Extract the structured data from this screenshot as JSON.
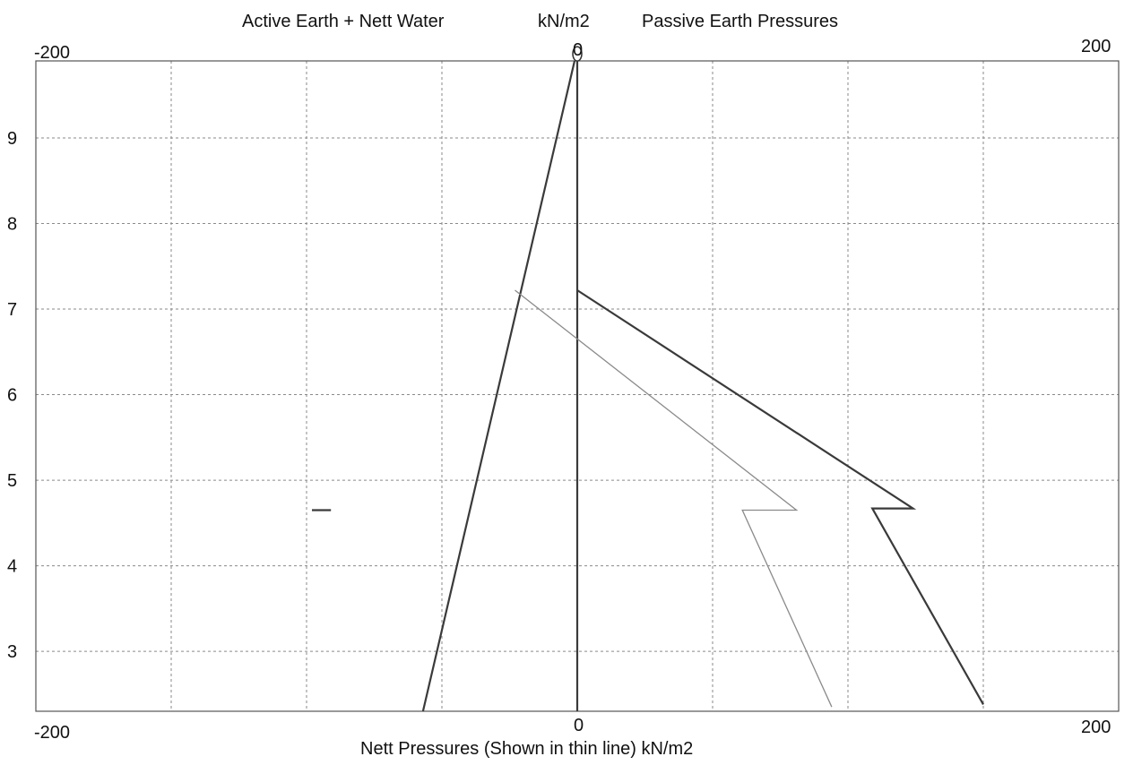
{
  "chart_data": {
    "type": "line",
    "title_left": "Active Earth + Nett Water",
    "title_center": "kN/m2",
    "title_right": "Passive Earth Pressures",
    "xlabel": "Nett Pressures (Shown in thin line) kN/m2",
    "top_x_labels": {
      "left": "-200",
      "right": "200"
    },
    "bottom_x_labels": {
      "left": "-200",
      "center": "0",
      "right": "200"
    },
    "xlim": [
      -200,
      200
    ],
    "ylim": [
      2.3,
      9.9
    ],
    "y_ticks": [
      3,
      4,
      5,
      6,
      7,
      8,
      9
    ],
    "x_grid": [
      -150,
      -100,
      -50,
      0,
      50,
      100,
      150
    ],
    "grid": true,
    "series": [
      {
        "style": "thick",
        "points": [
          [
            -1,
            9.9
          ],
          [
            -57,
            2.3
          ]
        ]
      },
      {
        "style": "thick",
        "points": [
          [
            -98,
            4.65
          ],
          [
            -91,
            4.65
          ]
        ]
      },
      {
        "style": "thick",
        "points": [
          [
            0,
            9.9
          ],
          [
            0,
            2.3
          ]
        ]
      },
      {
        "style": "thick",
        "points": [
          [
            0,
            7.22
          ],
          [
            124,
            4.67
          ],
          [
            109,
            4.67
          ],
          [
            150,
            2.38
          ]
        ]
      },
      {
        "style": "thin",
        "points": [
          [
            -23,
            7.22
          ],
          [
            81,
            4.65
          ],
          [
            61,
            4.65
          ],
          [
            94,
            2.35
          ]
        ]
      }
    ],
    "top_marker": {
      "x": 0,
      "y": 9.92,
      "label": "0"
    }
  }
}
